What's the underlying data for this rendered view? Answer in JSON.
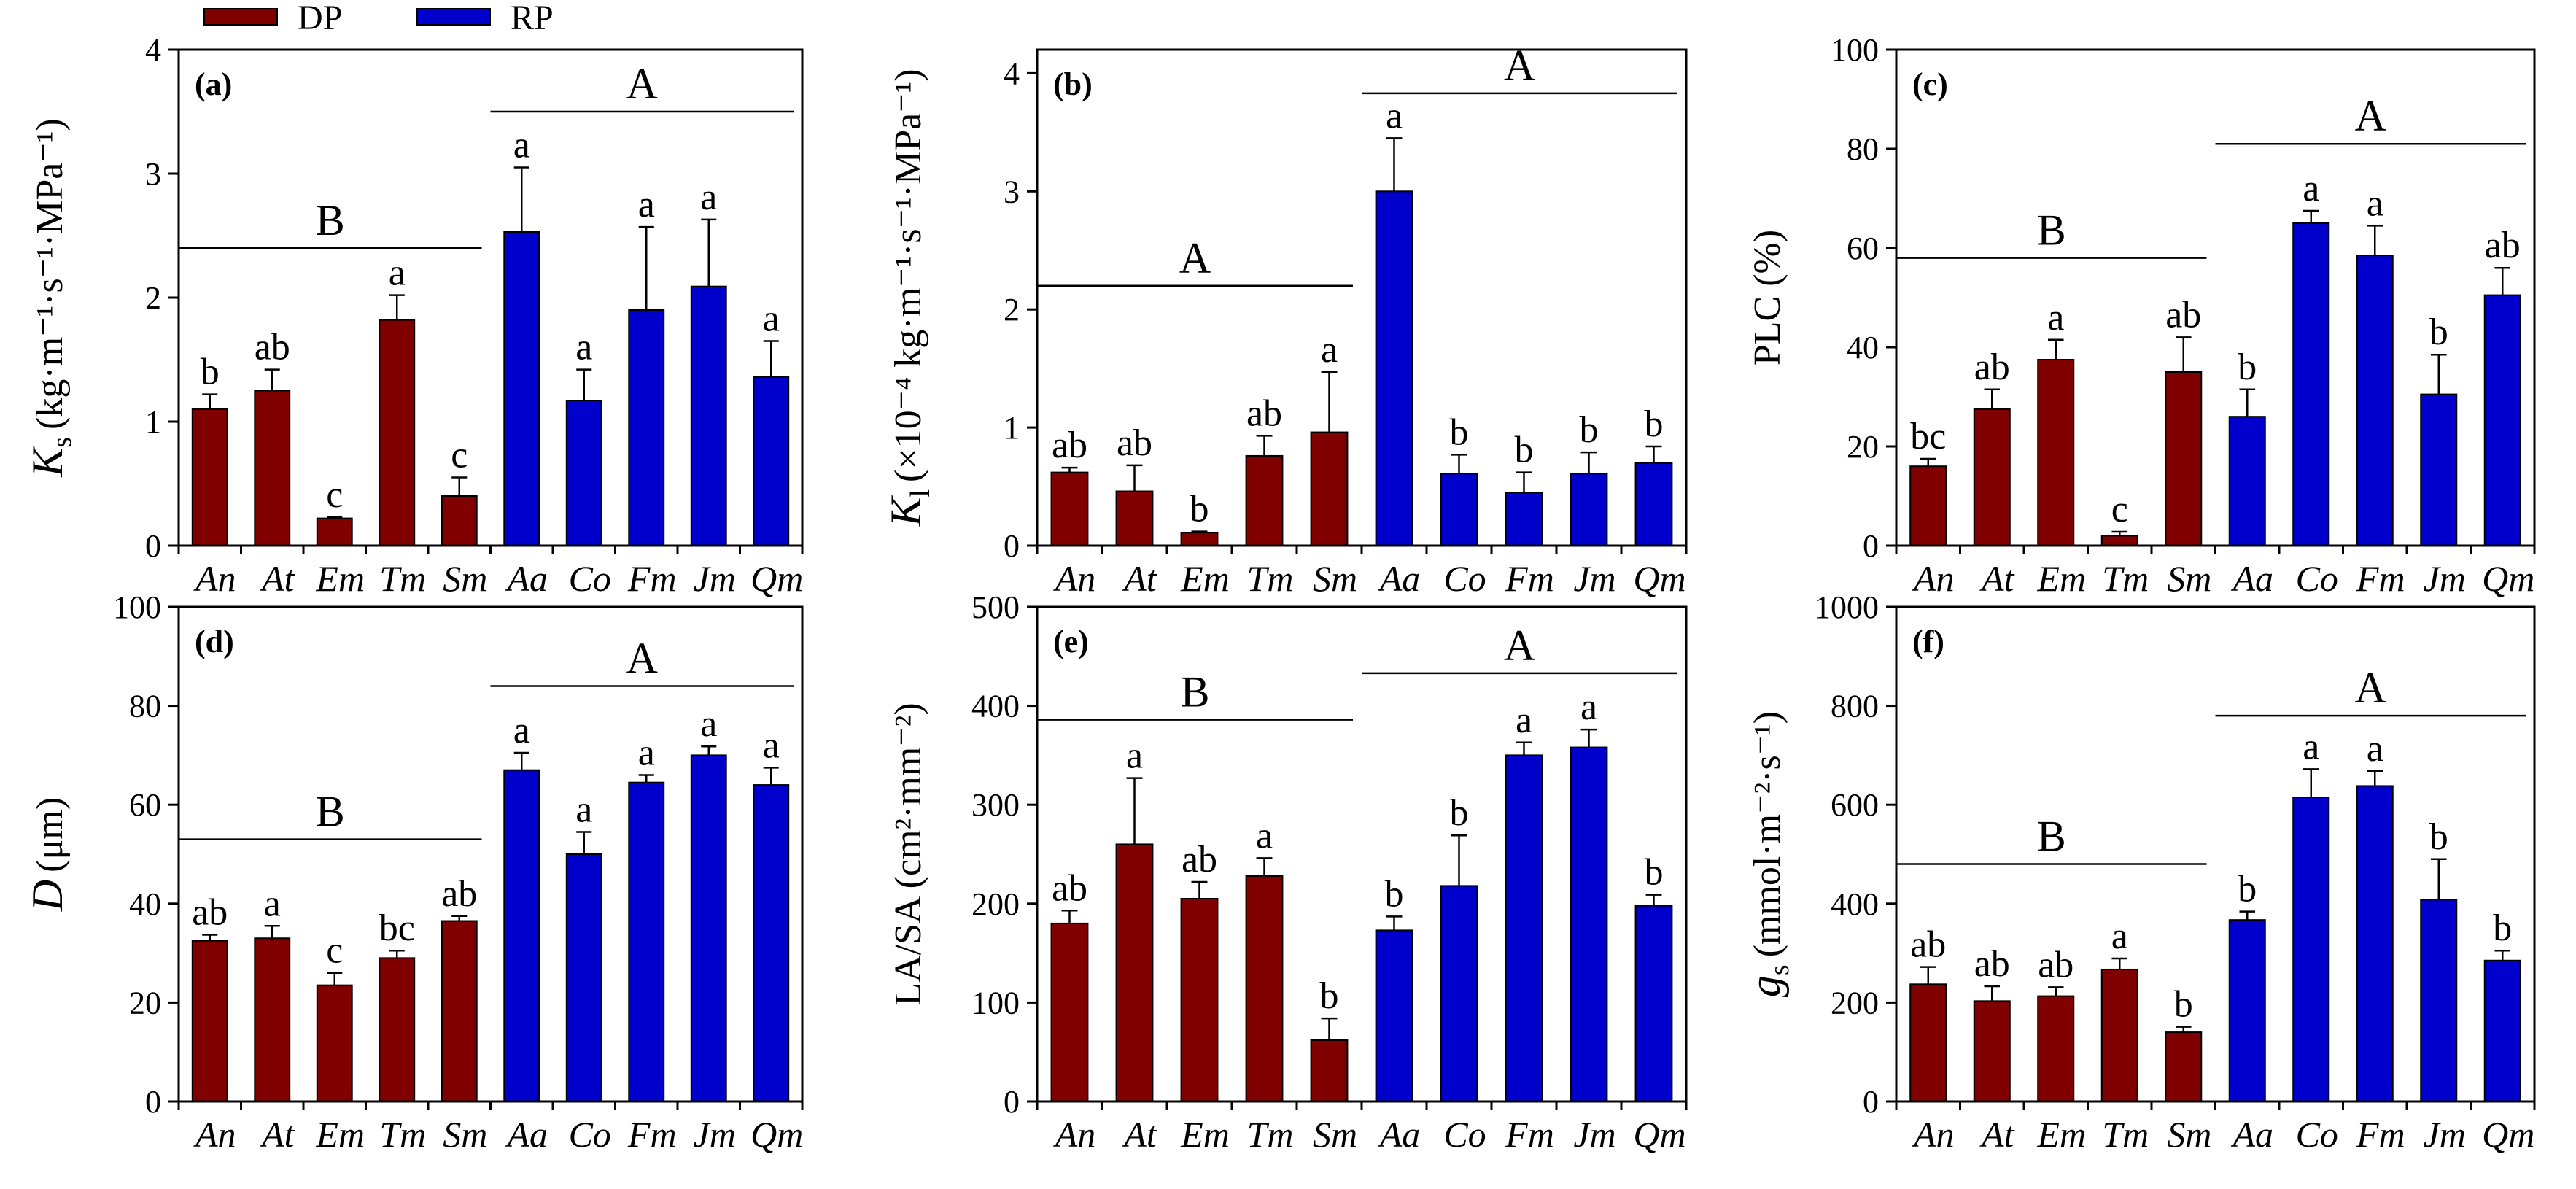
{
  "legend": [
    {
      "label": "DP",
      "color": "#800000"
    },
    {
      "label": "RP",
      "color": "#0000CD"
    }
  ],
  "chart_data": [
    {
      "type": "bar",
      "panel_label": "(a)",
      "ylabel_main": "K",
      "ylabel_sub": "s",
      "ylabel_unit": "(kg·m⁻¹·s⁻¹·MPa⁻¹)",
      "categories": [
        "An",
        "At",
        "Em",
        "Tm",
        "Sm",
        "Aa",
        "Co",
        "Fm",
        "Jm",
        "Qm"
      ],
      "groups": [
        "DP",
        "DP",
        "DP",
        "DP",
        "DP",
        "RP",
        "RP",
        "RP",
        "RP",
        "RP"
      ],
      "values": [
        1.1,
        1.25,
        0.22,
        1.82,
        0.4,
        2.53,
        1.17,
        1.9,
        2.09,
        1.36
      ],
      "errors": [
        0.12,
        0.17,
        0.01,
        0.2,
        0.15,
        0.52,
        0.25,
        0.67,
        0.54,
        0.29
      ],
      "letters": [
        "b",
        "ab",
        "c",
        "a",
        "c",
        "a",
        "a",
        "a",
        "a",
        "a"
      ],
      "ylim": [
        0,
        4
      ],
      "yticks": [
        0,
        1,
        2,
        3,
        4
      ],
      "group_letters": [
        {
          "label": "B",
          "y": 2.4,
          "from": 0,
          "to": 4
        },
        {
          "label": "A",
          "y": 3.5,
          "from": 5,
          "to": 9
        }
      ]
    },
    {
      "type": "bar",
      "panel_label": "(b)",
      "ylabel_main": "K",
      "ylabel_sub": "l",
      "ylabel_unit": "(×10⁻⁴ kg·m⁻¹·s⁻¹·MPa⁻¹)",
      "categories": [
        "An",
        "At",
        "Em",
        "Tm",
        "Sm",
        "Aa",
        "Co",
        "Fm",
        "Jm",
        "Qm"
      ],
      "groups": [
        "DP",
        "DP",
        "DP",
        "DP",
        "DP",
        "RP",
        "RP",
        "RP",
        "RP",
        "RP"
      ],
      "values": [
        0.62,
        0.46,
        0.11,
        0.76,
        0.96,
        3.0,
        0.61,
        0.45,
        0.61,
        0.7
      ],
      "errors": [
        0.04,
        0.22,
        0.01,
        0.17,
        0.51,
        0.45,
        0.16,
        0.17,
        0.18,
        0.14
      ],
      "letters": [
        "ab",
        "ab",
        "b",
        "ab",
        "a",
        "a",
        "b",
        "b",
        "b",
        "b"
      ],
      "ylim": [
        0,
        4.2
      ],
      "yticks": [
        0,
        1,
        2,
        3,
        4
      ],
      "group_letters": [
        {
          "label": "A",
          "y": 2.2,
          "from": 0,
          "to": 4
        },
        {
          "label": "A",
          "y": 3.83,
          "from": 5,
          "to": 9
        }
      ]
    },
    {
      "type": "bar",
      "panel_label": "(c)",
      "ylabel_main": "PLC (%)",
      "ylabel_sub": "",
      "ylabel_unit": "",
      "categories": [
        "An",
        "At",
        "Em",
        "Tm",
        "Sm",
        "Aa",
        "Co",
        "Fm",
        "Jm",
        "Qm"
      ],
      "groups": [
        "DP",
        "DP",
        "DP",
        "DP",
        "DP",
        "RP",
        "RP",
        "RP",
        "RP",
        "RP"
      ],
      "values": [
        16,
        27.5,
        37.5,
        2,
        35,
        26,
        65,
        58.5,
        30.5,
        50.5
      ],
      "errors": [
        1.5,
        4,
        4,
        0.8,
        7,
        5.5,
        2.5,
        6,
        8,
        5.5
      ],
      "letters": [
        "bc",
        "ab",
        "a",
        "c",
        "ab",
        "b",
        "a",
        "a",
        "b",
        "ab"
      ],
      "ylim": [
        0,
        100
      ],
      "yticks": [
        0,
        20,
        40,
        60,
        80,
        100
      ],
      "group_letters": [
        {
          "label": "B",
          "y": 58,
          "from": 0,
          "to": 4
        },
        {
          "label": "A",
          "y": 81,
          "from": 5,
          "to": 9
        }
      ]
    },
    {
      "type": "bar",
      "panel_label": "(d)",
      "ylabel_main": "D",
      "ylabel_sub": "",
      "ylabel_unit": "(μm)",
      "categories": [
        "An",
        "At",
        "Em",
        "Tm",
        "Sm",
        "Aa",
        "Co",
        "Fm",
        "Jm",
        "Qm"
      ],
      "groups": [
        "DP",
        "DP",
        "DP",
        "DP",
        "DP",
        "RP",
        "RP",
        "RP",
        "RP",
        "RP"
      ],
      "values": [
        32.5,
        33,
        23.5,
        29,
        36.5,
        67,
        50,
        64.5,
        70,
        64
      ],
      "errors": [
        1.2,
        2.5,
        2.5,
        1.5,
        1,
        3.5,
        4.5,
        1.5,
        1.8,
        3.5
      ],
      "letters": [
        "ab",
        "a",
        "c",
        "bc",
        "ab",
        "a",
        "a",
        "a",
        "a",
        "a"
      ],
      "ylim": [
        0,
        100
      ],
      "yticks": [
        0,
        20,
        40,
        60,
        80,
        100
      ],
      "group_letters": [
        {
          "label": "B",
          "y": 53,
          "from": 0,
          "to": 4
        },
        {
          "label": "A",
          "y": 84,
          "from": 5,
          "to": 9
        }
      ]
    },
    {
      "type": "bar",
      "panel_label": "(e)",
      "ylabel_main": "LA/SA (cm²·mm⁻²)",
      "ylabel_sub": "",
      "ylabel_unit": "",
      "categories": [
        "An",
        "At",
        "Em",
        "Tm",
        "Sm",
        "Aa",
        "Co",
        "Fm",
        "Jm",
        "Qm"
      ],
      "groups": [
        "DP",
        "DP",
        "DP",
        "DP",
        "DP",
        "RP",
        "RP",
        "RP",
        "RP",
        "RP"
      ],
      "values": [
        180,
        260,
        205,
        228,
        62,
        173,
        218,
        350,
        358,
        198
      ],
      "errors": [
        13,
        67,
        17,
        18,
        22,
        14,
        51,
        13,
        18,
        11
      ],
      "letters": [
        "ab",
        "a",
        "ab",
        "a",
        "b",
        "b",
        "b",
        "a",
        "a",
        "b"
      ],
      "ylim": [
        0,
        500
      ],
      "yticks": [
        0,
        100,
        200,
        300,
        400,
        500
      ],
      "group_letters": [
        {
          "label": "B",
          "y": 386,
          "from": 0,
          "to": 4
        },
        {
          "label": "A",
          "y": 433,
          "from": 5,
          "to": 9
        }
      ]
    },
    {
      "type": "bar",
      "panel_label": "(f)",
      "ylabel_main": "g",
      "ylabel_sub": "s",
      "ylabel_unit": "(mmol·m⁻²·s⁻¹)",
      "categories": [
        "An",
        "At",
        "Em",
        "Tm",
        "Sm",
        "Aa",
        "Co",
        "Fm",
        "Jm",
        "Qm"
      ],
      "groups": [
        "DP",
        "DP",
        "DP",
        "DP",
        "DP",
        "RP",
        "RP",
        "RP",
        "RP",
        "RP"
      ],
      "values": [
        237,
        203,
        213,
        267,
        140,
        367,
        615,
        638,
        408,
        285
      ],
      "errors": [
        35,
        30,
        18,
        22,
        11,
        17,
        57,
        30,
        82,
        20
      ],
      "letters": [
        "ab",
        "ab",
        "ab",
        "a",
        "b",
        "b",
        "a",
        "a",
        "b",
        "b"
      ],
      "ylim": [
        0,
        1000
      ],
      "yticks": [
        0,
        200,
        400,
        600,
        800,
        1000
      ],
      "group_letters": [
        {
          "label": "B",
          "y": 480,
          "from": 0,
          "to": 4
        },
        {
          "label": "A",
          "y": 780,
          "from": 5,
          "to": 9
        }
      ]
    }
  ]
}
